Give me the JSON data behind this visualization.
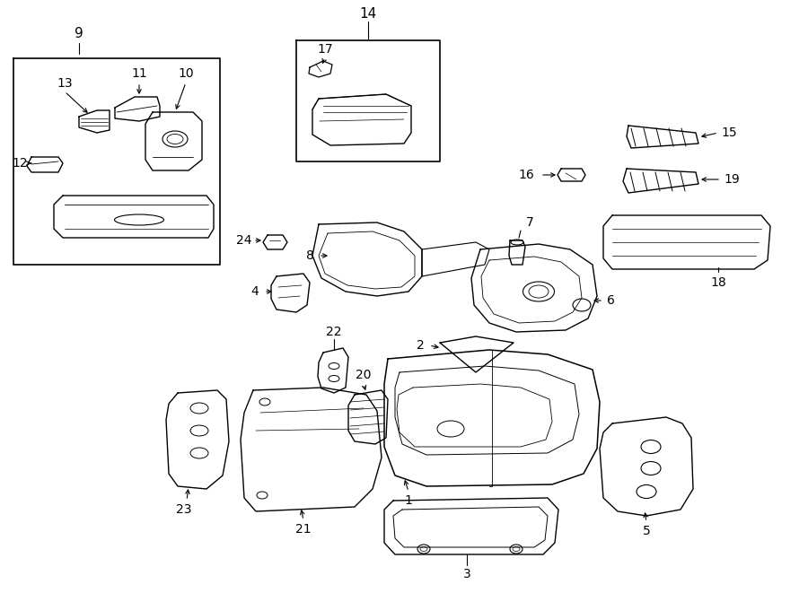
{
  "background_color": "#ffffff",
  "line_color": "#000000",
  "fig_width": 9.0,
  "fig_height": 6.61,
  "dpi": 100,
  "label_fontsize": 11,
  "small_label_fontsize": 10
}
